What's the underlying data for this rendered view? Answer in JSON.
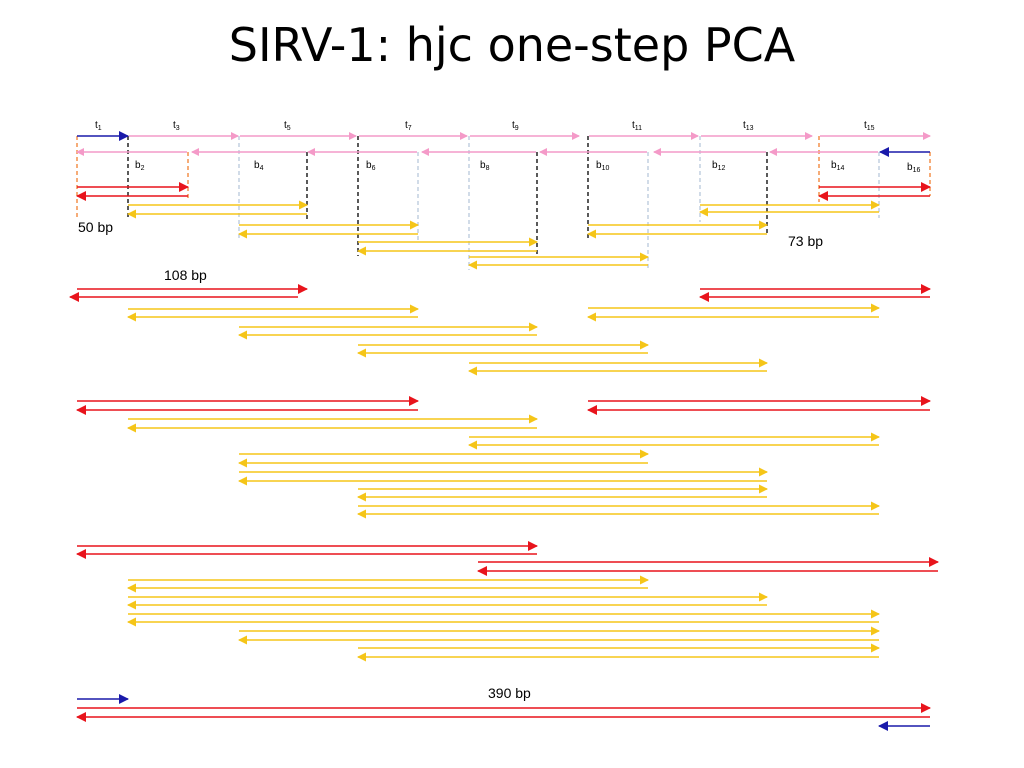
{
  "title": "SIRV-1: hjc one-step PCA",
  "colors": {
    "pink": "#f49ac8",
    "blue": "#1a1aaa",
    "red": "#e8141c",
    "yellow": "#f5c518",
    "black_dash": "#000000",
    "orange_dash": "#f08030",
    "grey_dash": "#b8c8dc"
  },
  "top_labels": [
    {
      "base": "t",
      "sub": "1"
    },
    {
      "base": "t",
      "sub": "3"
    },
    {
      "base": "t",
      "sub": "5"
    },
    {
      "base": "t",
      "sub": "7"
    },
    {
      "base": "t",
      "sub": "9"
    },
    {
      "base": "t",
      "sub": "11"
    },
    {
      "base": "t",
      "sub": "13"
    },
    {
      "base": "t",
      "sub": "15"
    }
  ],
  "bottom_labels": [
    {
      "base": "b",
      "sub": "2"
    },
    {
      "base": "b",
      "sub": "4"
    },
    {
      "base": "b",
      "sub": "6"
    },
    {
      "base": "b",
      "sub": "8"
    },
    {
      "base": "b",
      "sub": "10"
    },
    {
      "base": "b",
      "sub": "12"
    },
    {
      "base": "b",
      "sub": "14"
    },
    {
      "base": "b",
      "sub": "16"
    }
  ],
  "size_labels": {
    "bp50": "50 bp",
    "bp73": "73 bp",
    "bp108": "108 bp",
    "bp390": "390 bp"
  }
}
